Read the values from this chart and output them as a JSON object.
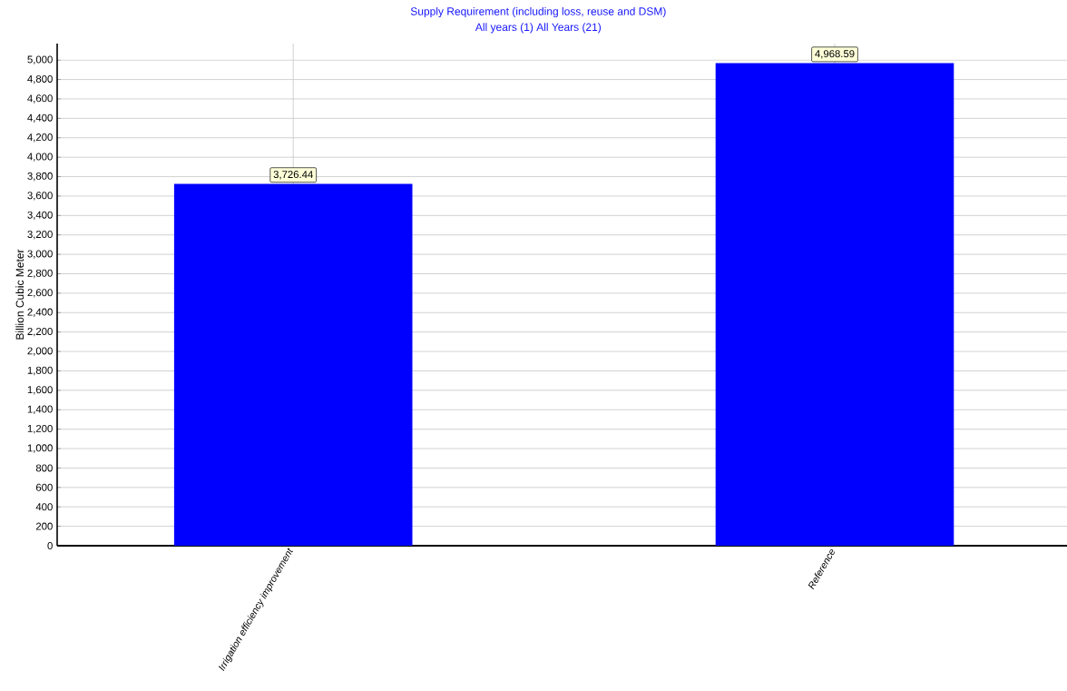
{
  "chart_data": {
    "type": "bar",
    "title": "Supply Requirement (including loss, reuse and DSM)",
    "subtitle": "All years (1) All Years (21)",
    "ylabel": "Billion Cubic Meter",
    "categories": [
      "Irrigation efficiency improvement",
      "Reference"
    ],
    "values": [
      3726.44,
      4968.59
    ],
    "color": "#0000ff",
    "value_labels": [
      "3,726.44",
      "4,968.59"
    ],
    "ylim": [
      0,
      5170
    ],
    "yticks": [
      0,
      200,
      400,
      600,
      800,
      {
        "value": 1000,
        "label": "1,000"
      },
      {
        "value": 1200,
        "label": "1,200"
      },
      {
        "value": 1400,
        "label": "1,400"
      },
      {
        "value": 1600,
        "label": "1,600"
      },
      {
        "value": 1800,
        "label": "1,800"
      },
      {
        "value": 2000,
        "label": "2,000"
      },
      {
        "value": 2200,
        "label": "2,200"
      },
      {
        "value": 2400,
        "label": "2,400"
      },
      {
        "value": 2600,
        "label": "2,600"
      },
      {
        "value": 2800,
        "label": "2,800"
      },
      {
        "value": 3000,
        "label": "3,000"
      },
      {
        "value": 3200,
        "label": "3,200"
      },
      {
        "value": 3400,
        "label": "3,400"
      },
      {
        "value": 3600,
        "label": "3,600"
      },
      {
        "value": 3800,
        "label": "3,800"
      },
      {
        "value": 4000,
        "label": "4,000"
      },
      {
        "value": 4200,
        "label": "4,200"
      },
      {
        "value": 4400,
        "label": "4,400"
      },
      {
        "value": 4600,
        "label": "4,600"
      },
      {
        "value": 4800,
        "label": "4,800"
      },
      {
        "value": 5000,
        "label": "5,000"
      }
    ],
    "grid": true
  }
}
